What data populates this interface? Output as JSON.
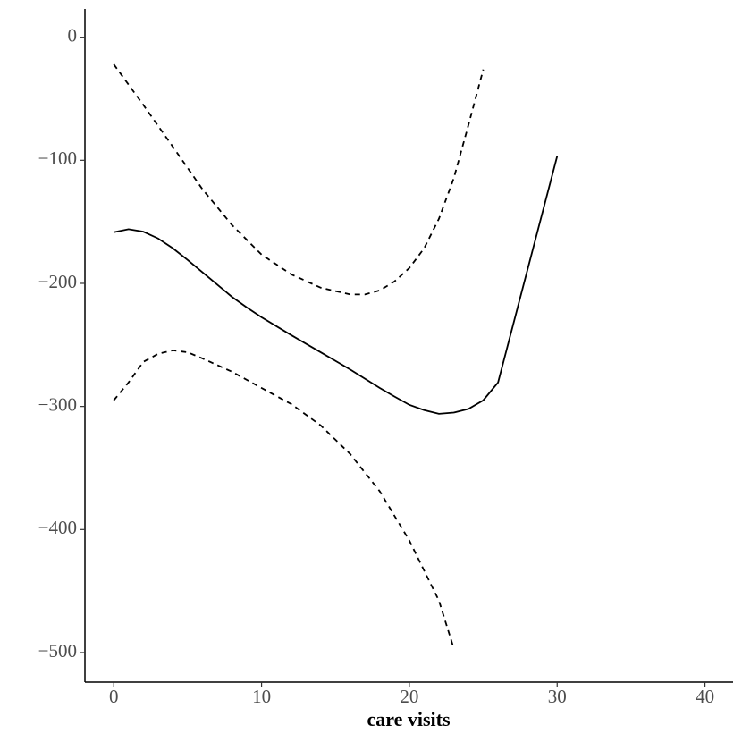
{
  "chart_data": {
    "type": "line",
    "x_label": "care visits",
    "xlim": [
      -1.95,
      41.9
    ],
    "xticks": [
      0,
      10,
      20,
      30,
      40
    ],
    "ylim": [
      -524,
      23
    ],
    "yticks": [
      0,
      {
        "value": -100,
        "label": "−100"
      },
      {
        "value": -200,
        "label": "−200"
      },
      {
        "value": -300,
        "label": "−300"
      },
      {
        "value": -400,
        "label": "−400"
      },
      {
        "value": -500,
        "label": "−500"
      }
    ],
    "grid": false,
    "series": [
      {
        "color": "#000000",
        "dashed": false,
        "x": [
          0,
          1,
          2,
          3,
          4,
          5,
          6,
          7,
          8,
          9,
          10,
          12,
          14,
          16,
          18,
          19,
          20,
          21,
          22,
          23,
          24,
          25,
          26,
          30
        ],
        "values": [
          -158.4,
          -156,
          -158,
          -163.5,
          -171.5,
          -181,
          -191,
          -201,
          -211,
          -219.5,
          -227.5,
          -242,
          -256,
          -270,
          -285,
          -292,
          -298.7,
          -303,
          -306,
          -305,
          -302,
          -295,
          -280.5,
          -96.7
        ]
      },
      {
        "color": "#000000",
        "dashed": true,
        "x": [
          0,
          2,
          4,
          6,
          8,
          10,
          12,
          14,
          16,
          17,
          18,
          19,
          20,
          21,
          22,
          23,
          24,
          25
        ],
        "values": [
          -22,
          -55,
          -89,
          -123.5,
          -152.6,
          -176.6,
          -192.6,
          -203.5,
          -209,
          -209,
          -205.7,
          -198.4,
          -187.5,
          -171.5,
          -147.5,
          -114.8,
          -71.2,
          -26.2
        ]
      },
      {
        "color": "#000000",
        "dashed": true,
        "x": [
          0,
          1,
          2,
          3,
          4,
          5,
          6,
          8,
          10,
          12,
          14,
          16,
          18,
          20,
          22,
          23
        ],
        "values": [
          -295,
          -280.5,
          -263.8,
          -257.3,
          -254.4,
          -256,
          -261,
          -271.8,
          -285,
          -298,
          -315.4,
          -338.7,
          -369,
          -409,
          -457.8,
          -496.4
        ]
      }
    ]
  }
}
